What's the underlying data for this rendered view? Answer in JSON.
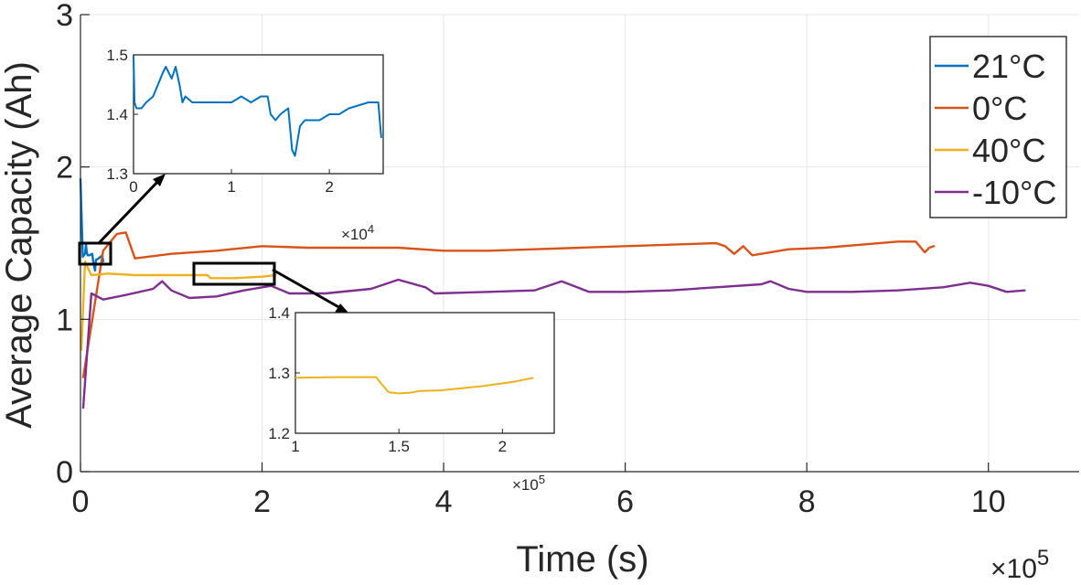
{
  "chart_data": {
    "type": "line",
    "xlabel": "Time (s)",
    "ylabel": "Average Capacity (Ah)",
    "x_multiplier": "×10",
    "x_exponent": "5",
    "xlim": [
      0,
      1100000
    ],
    "ylim": [
      0,
      3
    ],
    "xticks": [
      0,
      200000,
      400000,
      600000,
      800000,
      1000000
    ],
    "xtick_labels": [
      "0",
      "2",
      "4",
      "6",
      "8",
      "10"
    ],
    "yticks": [
      0,
      1,
      2,
      3
    ],
    "ytick_labels": [
      "0",
      "1",
      "2",
      "3"
    ],
    "grid": true,
    "legend_position": "top-right",
    "series": [
      {
        "name": "21°C",
        "color": "#0072bd",
        "points": [
          [
            0,
            1.92
          ],
          [
            2500,
            1.41
          ],
          [
            5000,
            1.43
          ],
          [
            6000,
            1.49
          ],
          [
            7000,
            1.44
          ],
          [
            8000,
            1.42
          ],
          [
            10000,
            1.42
          ],
          [
            13000,
            1.43
          ],
          [
            14000,
            1.38
          ],
          [
            16000,
            1.32
          ],
          [
            17000,
            1.39
          ],
          [
            20000,
            1.4
          ],
          [
            24000,
            1.42
          ],
          [
            25000,
            1.38
          ]
        ]
      },
      {
        "name": "0°C",
        "color": "#d95319",
        "points": [
          [
            3000,
            0.62
          ],
          [
            25000,
            1.45
          ],
          [
            40000,
            1.56
          ],
          [
            50000,
            1.57
          ],
          [
            60000,
            1.4
          ],
          [
            100000,
            1.43
          ],
          [
            150000,
            1.45
          ],
          [
            200000,
            1.48
          ],
          [
            250000,
            1.47
          ],
          [
            300000,
            1.47
          ],
          [
            350000,
            1.47
          ],
          [
            400000,
            1.45
          ],
          [
            450000,
            1.45
          ],
          [
            500000,
            1.46
          ],
          [
            550000,
            1.47
          ],
          [
            600000,
            1.48
          ],
          [
            650000,
            1.49
          ],
          [
            700000,
            1.5
          ],
          [
            710000,
            1.48
          ],
          [
            720000,
            1.43
          ],
          [
            730000,
            1.48
          ],
          [
            740000,
            1.42
          ],
          [
            780000,
            1.46
          ],
          [
            820000,
            1.47
          ],
          [
            860000,
            1.49
          ],
          [
            900000,
            1.51
          ],
          [
            920000,
            1.51
          ],
          [
            930000,
            1.44
          ],
          [
            935000,
            1.47
          ],
          [
            940000,
            1.48
          ]
        ]
      },
      {
        "name": "40°C",
        "color": "#edb120",
        "points": [
          [
            1000,
            0.8
          ],
          [
            5000,
            1.38
          ],
          [
            8000,
            1.34
          ],
          [
            12000,
            1.29
          ],
          [
            30000,
            1.3
          ],
          [
            60000,
            1.29
          ],
          [
            100000,
            1.29
          ],
          [
            140000,
            1.29
          ],
          [
            143000,
            1.27
          ],
          [
            150000,
            1.27
          ],
          [
            170000,
            1.27
          ],
          [
            200000,
            1.28
          ],
          [
            215000,
            1.29
          ]
        ]
      },
      {
        "name": "-10°C",
        "color": "#7e2f8e",
        "points": [
          [
            3000,
            0.42
          ],
          [
            12000,
            1.17
          ],
          [
            25000,
            1.13
          ],
          [
            50000,
            1.16
          ],
          [
            80000,
            1.2
          ],
          [
            90000,
            1.25
          ],
          [
            100000,
            1.19
          ],
          [
            120000,
            1.14
          ],
          [
            150000,
            1.15
          ],
          [
            180000,
            1.19
          ],
          [
            210000,
            1.22
          ],
          [
            230000,
            1.17
          ],
          [
            270000,
            1.17
          ],
          [
            320000,
            1.2
          ],
          [
            350000,
            1.26
          ],
          [
            380000,
            1.21
          ],
          [
            390000,
            1.17
          ],
          [
            450000,
            1.18
          ],
          [
            500000,
            1.19
          ],
          [
            530000,
            1.25
          ],
          [
            560000,
            1.18
          ],
          [
            600000,
            1.18
          ],
          [
            650000,
            1.19
          ],
          [
            700000,
            1.21
          ],
          [
            750000,
            1.23
          ],
          [
            760000,
            1.25
          ],
          [
            780000,
            1.2
          ],
          [
            800000,
            1.18
          ],
          [
            850000,
            1.18
          ],
          [
            900000,
            1.19
          ],
          [
            950000,
            1.21
          ],
          [
            980000,
            1.24
          ],
          [
            1000000,
            1.22
          ],
          [
            1020000,
            1.18
          ],
          [
            1040000,
            1.19
          ]
        ]
      }
    ],
    "insets": [
      {
        "name": "inset-21C",
        "series_index": 0,
        "xlim": [
          0,
          25500
        ],
        "ylim": [
          1.3,
          1.5
        ],
        "xticks": [
          0,
          10000,
          20000
        ],
        "xtick_labels": [
          "0",
          "1",
          "2"
        ],
        "yticks": [
          1.3,
          1.4,
          1.5
        ],
        "ytick_labels": [
          "1.3",
          "1.4",
          "1.5"
        ],
        "x_multiplier": "×10",
        "x_exponent": "4",
        "points": [
          [
            0,
            1.5
          ],
          [
            100,
            1.42
          ],
          [
            300,
            1.41
          ],
          [
            800,
            1.41
          ],
          [
            1300,
            1.42
          ],
          [
            2000,
            1.43
          ],
          [
            2500,
            1.45
          ],
          [
            3000,
            1.47
          ],
          [
            3300,
            1.48
          ],
          [
            3600,
            1.47
          ],
          [
            3900,
            1.46
          ],
          [
            4300,
            1.48
          ],
          [
            4700,
            1.45
          ],
          [
            5000,
            1.42
          ],
          [
            5300,
            1.43
          ],
          [
            6000,
            1.42
          ],
          [
            8000,
            1.42
          ],
          [
            10000,
            1.42
          ],
          [
            11000,
            1.43
          ],
          [
            12000,
            1.42
          ],
          [
            13000,
            1.43
          ],
          [
            13700,
            1.43
          ],
          [
            14000,
            1.4
          ],
          [
            14500,
            1.39
          ],
          [
            15000,
            1.4
          ],
          [
            15800,
            1.41
          ],
          [
            16200,
            1.34
          ],
          [
            16500,
            1.33
          ],
          [
            17000,
            1.38
          ],
          [
            17500,
            1.39
          ],
          [
            19000,
            1.39
          ],
          [
            20000,
            1.4
          ],
          [
            21000,
            1.4
          ],
          [
            22000,
            1.41
          ],
          [
            24000,
            1.42
          ],
          [
            25000,
            1.42
          ],
          [
            25300,
            1.36
          ]
        ]
      },
      {
        "name": "inset-40C",
        "series_index": 2,
        "xlim": [
          100000,
          225000
        ],
        "ylim": [
          1.2,
          1.4
        ],
        "xticks": [
          100000,
          150000,
          200000
        ],
        "xtick_labels": [
          "1",
          "1.5",
          "2"
        ],
        "yticks": [
          1.2,
          1.3,
          1.4
        ],
        "ytick_labels": [
          "1.2",
          "1.3",
          "1.4"
        ],
        "x_multiplier": "×10",
        "x_exponent": "5",
        "points": [
          [
            100000,
            1.292
          ],
          [
            120000,
            1.293
          ],
          [
            139000,
            1.293
          ],
          [
            142000,
            1.28
          ],
          [
            145000,
            1.268
          ],
          [
            150000,
            1.266
          ],
          [
            155000,
            1.267
          ],
          [
            160000,
            1.27
          ],
          [
            170000,
            1.271
          ],
          [
            190000,
            1.278
          ],
          [
            205000,
            1.285
          ],
          [
            215000,
            1.292
          ]
        ]
      }
    ]
  }
}
